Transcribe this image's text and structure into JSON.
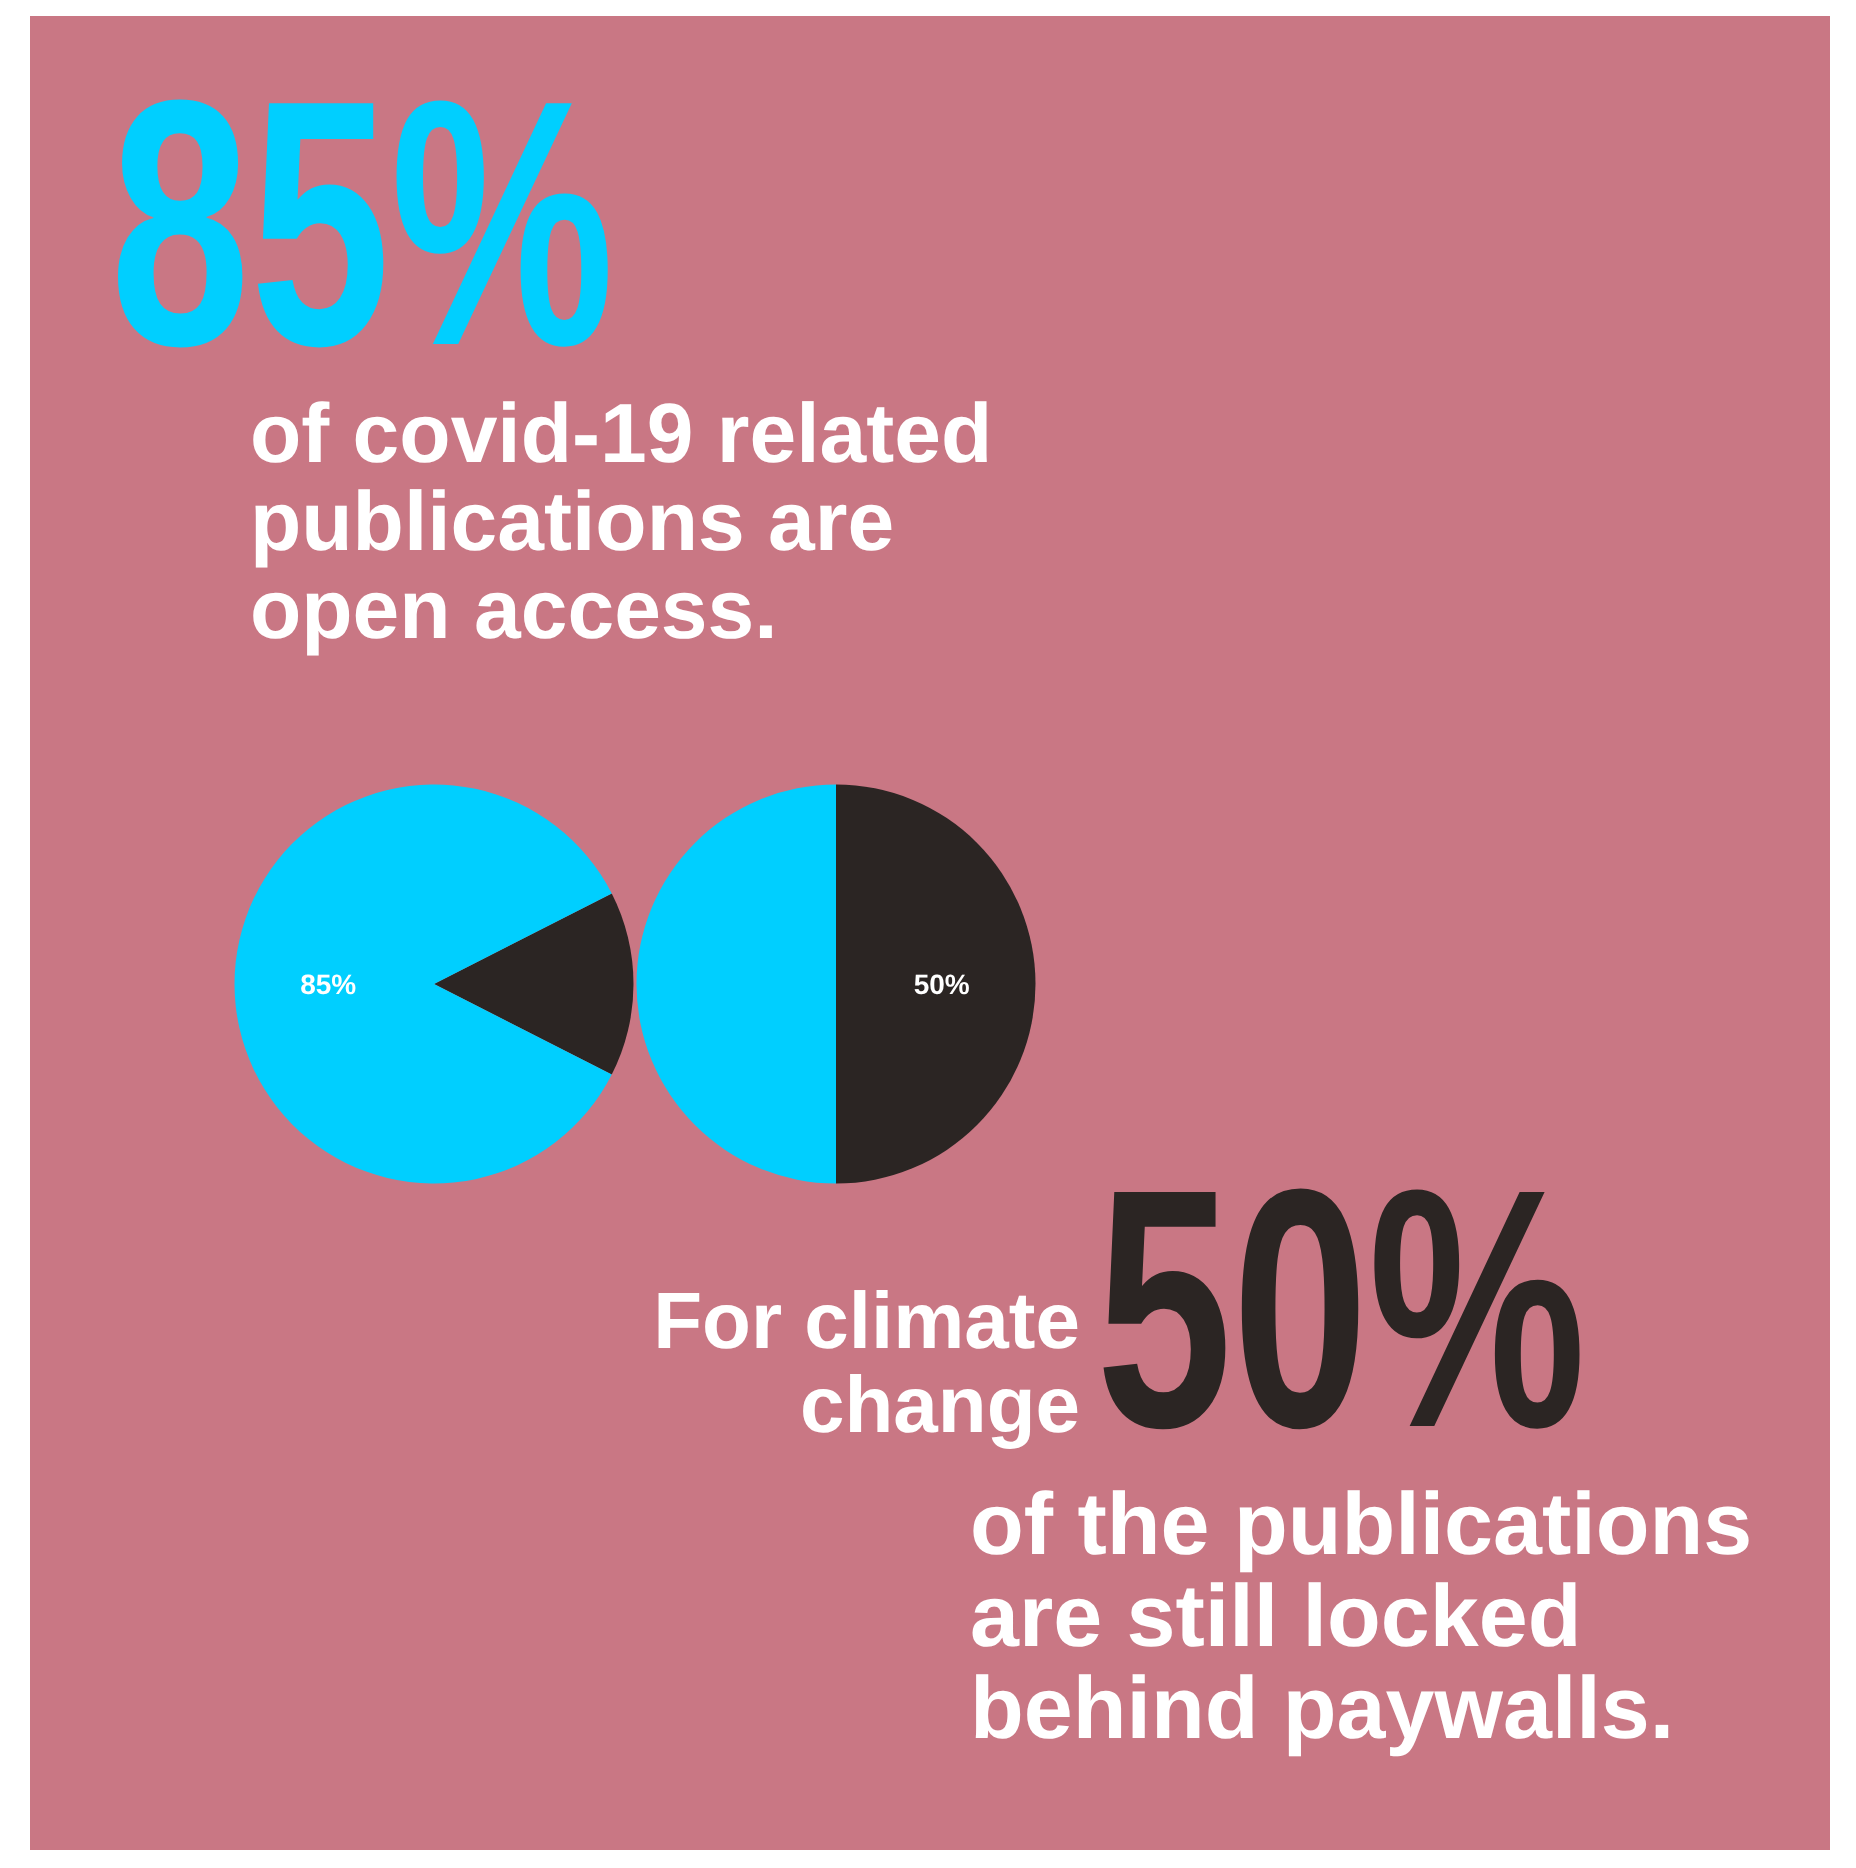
{
  "chart_data": [
    {
      "type": "pie",
      "title": "85%",
      "annotations": [
        "of covid-19 related publications are open access."
      ],
      "categories": [
        null,
        null
      ],
      "values": [
        15,
        85
      ],
      "colors": [
        "#2b2523",
        "#00cfff"
      ],
      "value_labels": [
        null,
        "85%"
      ]
    },
    {
      "type": "pie",
      "title": "50%",
      "annotations": [
        "For climate change",
        "of the publications are still locked behind paywalls."
      ],
      "categories": [
        null,
        null
      ],
      "values": [
        50,
        50
      ],
      "colors": [
        "#2b2523",
        "#00cfff"
      ],
      "value_labels": [
        "50%",
        null
      ]
    }
  ]
}
